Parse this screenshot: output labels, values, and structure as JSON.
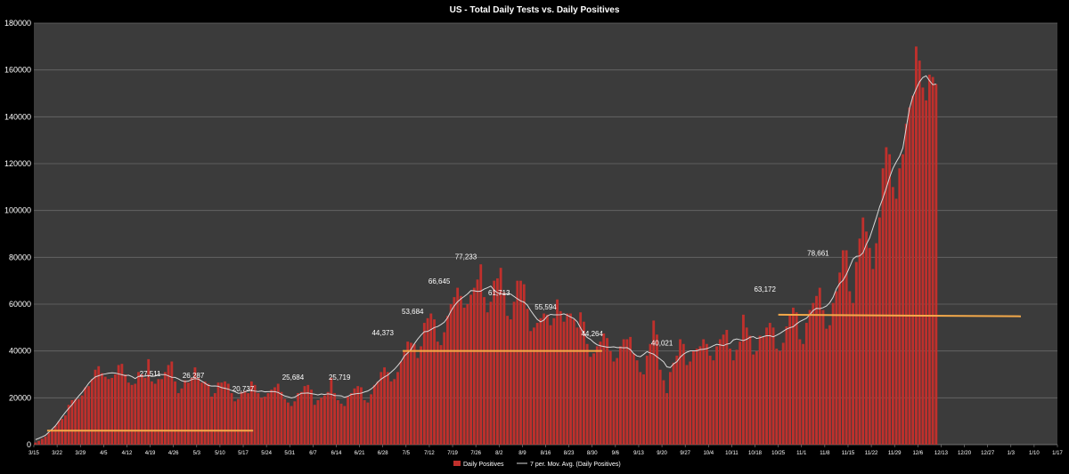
{
  "chart_data": {
    "type": "bar",
    "title": "US - Total Daily Tests vs.  Daily Positives",
    "xlabel": "",
    "ylabel": "",
    "ylim": [
      0,
      180000
    ],
    "ytick_labels": [
      "0",
      "20000",
      "40000",
      "60000",
      "80000",
      "100000",
      "120000",
      "140000",
      "160000",
      "180000"
    ],
    "yticks": [
      0,
      20000,
      40000,
      60000,
      80000,
      100000,
      120000,
      140000,
      160000,
      180000
    ],
    "grid": true,
    "legend_position": "bottom",
    "x_start_date": "3/15",
    "x_end_date": "1/17",
    "x_tick_labels": [
      "3/15",
      "3/22",
      "3/29",
      "4/5",
      "4/12",
      "4/19",
      "4/26",
      "5/3",
      "5/10",
      "5/17",
      "5/24",
      "5/31",
      "6/7",
      "6/14",
      "6/21",
      "6/28",
      "7/5",
      "7/12",
      "7/19",
      "7/26",
      "8/2",
      "8/9",
      "8/16",
      "8/23",
      "8/30",
      "9/6",
      "9/13",
      "9/20",
      "9/27",
      "10/4",
      "10/11",
      "10/18",
      "10/25",
      "11/1",
      "11/8",
      "11/15",
      "11/22",
      "11/29",
      "12/6",
      "12/13",
      "12/20",
      "12/27",
      "1/3",
      "1/10",
      "1/17"
    ],
    "series": [
      {
        "name": "Daily Positives",
        "kind": "bar",
        "color": "#c0302c",
        "values": [
          900,
          1600,
          2500,
          3500,
          5000,
          6500,
          8000,
          10000,
          11000,
          12500,
          17000,
          19000,
          19500,
          19500,
          21000,
          24500,
          25000,
          28000,
          32000,
          33500,
          30500,
          29000,
          28000,
          28500,
          30000,
          34000,
          34500,
          30000,
          26500,
          25500,
          26000,
          31000,
          30000,
          28500,
          36500,
          27000,
          26000,
          28000,
          28000,
          31000,
          34000,
          35500,
          27000,
          22000,
          24000,
          27500,
          26500,
          28500,
          33000,
          28500,
          26500,
          27000,
          26000,
          20500,
          22000,
          26500,
          26500,
          27000,
          26000,
          22000,
          18500,
          19500,
          22500,
          23000,
          22000,
          27000,
          25500,
          22000,
          20000,
          20500,
          22000,
          23500,
          24500,
          26000,
          22500,
          19500,
          18000,
          16500,
          18500,
          22000,
          22500,
          25000,
          25500,
          23500,
          17000,
          19000,
          20000,
          21000,
          22500,
          28500,
          22000,
          19000,
          17500,
          16500,
          20500,
          22000,
          24000,
          25000,
          24500,
          19000,
          18000,
          21500,
          25500,
          27000,
          31000,
          33000,
          31000,
          27000,
          28000,
          31000,
          35500,
          40000,
          44000,
          43500,
          43000,
          37000,
          42000,
          52000,
          54000,
          56000,
          53500,
          44000,
          42500,
          48000,
          55000,
          60000,
          63000,
          67000,
          63500,
          58500,
          60000,
          64000,
          67000,
          70500,
          77000,
          63000,
          56500,
          61000,
          70000,
          71000,
          75500,
          65000,
          55000,
          53500,
          61000,
          70000,
          70000,
          68500,
          58000,
          48500,
          50000,
          52000,
          54000,
          56000,
          55500,
          51000,
          54000,
          62000,
          57000,
          52500,
          56000,
          56000,
          53500,
          50000,
          56500,
          52500,
          43000,
          37500,
          39000,
          42000,
          44000,
          47500,
          45500,
          40000,
          35500,
          37000,
          42000,
          45000,
          45000,
          46000,
          39000,
          36000,
          31000,
          30000,
          38000,
          43000,
          53000,
          47000,
          32000,
          27500,
          22000,
          31000,
          35000,
          38000,
          45000,
          43000,
          34000,
          35500,
          40000,
          41000,
          42000,
          45000,
          43000,
          38000,
          36000,
          42000,
          45000,
          47000,
          49000,
          41000,
          36000,
          40500,
          44000,
          55500,
          50000,
          46500,
          38500,
          40000,
          46500,
          46000,
          50000,
          52000,
          50000,
          41000,
          40000,
          43500,
          50500,
          55500,
          58500,
          56500,
          45000,
          43000,
          52000,
          57500,
          60500,
          63500,
          67000,
          57500,
          49500,
          51000,
          60500,
          65500,
          73500,
          83000,
          83000,
          65500,
          60500,
          78000,
          88000,
          97000,
          91000,
          84000,
          75000,
          86000,
          97000,
          118000,
          127000,
          124000,
          110000,
          105000,
          118000,
          124000,
          137000,
          144000,
          149000,
          170000,
          164000,
          152500,
          147000,
          158000,
          157000,
          154000
        ]
      },
      {
        "name": "7 per. Mov. Avg. (Daily Positives)",
        "kind": "line",
        "color": "#d9d9d9"
      }
    ],
    "annotations": [
      {
        "label": "27,511",
        "x_day": 35,
        "y": 28500
      },
      {
        "label": "26,287",
        "x_day": 48,
        "y": 27700
      },
      {
        "label": "20,737",
        "x_day": 63,
        "y": 22000
      },
      {
        "label": "25,684",
        "x_day": 78,
        "y": 27000
      },
      {
        "label": "25,719",
        "x_day": 92,
        "y": 27000
      },
      {
        "label": "44,373",
        "x_day": 105,
        "y": 46000
      },
      {
        "label": "53,684",
        "x_day": 114,
        "y": 55000
      },
      {
        "label": "66,645",
        "x_day": 122,
        "y": 68000
      },
      {
        "label": "77,233",
        "x_day": 130,
        "y": 78500
      },
      {
        "label": "61,713",
        "x_day": 140,
        "y": 63000
      },
      {
        "label": "55,594",
        "x_day": 154,
        "y": 57000
      },
      {
        "label": "44,264",
        "x_day": 168,
        "y": 45500
      },
      {
        "label": "40,021",
        "x_day": 189,
        "y": 41500
      },
      {
        "label": "63,172",
        "x_day": 220,
        "y": 64500
      },
      {
        "label": "78,661",
        "x_day": 236,
        "y": 80000
      }
    ],
    "reference_lines": [
      {
        "x0_day": 4,
        "x1_day": 66,
        "y": 6000,
        "color": "#f4a94a"
      },
      {
        "x0_day": 111,
        "x1_day": 171,
        "y": 40000,
        "color": "#f4a94a"
      },
      {
        "x0_day": 224,
        "x1_day": 297,
        "y": 55500,
        "y1": 54800,
        "color": "#f4a94a"
      }
    ]
  }
}
